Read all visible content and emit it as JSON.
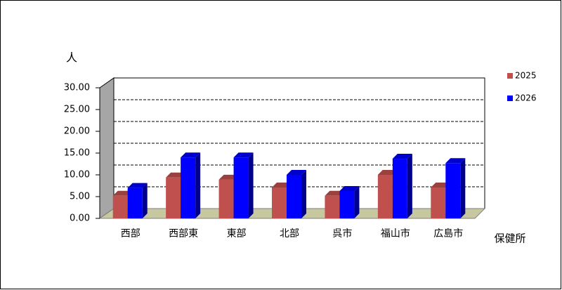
{
  "chart_data": {
    "type": "bar3d",
    "y_label": "人",
    "x_label": "保健所",
    "categories": [
      "西部",
      "西部東",
      "東部",
      "北部",
      "呉市",
      "福山市",
      "広島市"
    ],
    "series": [
      {
        "name": "2025",
        "color": "#c0504d",
        "values": [
          5.2,
          9.4,
          8.9,
          7.1,
          5.2,
          10.0,
          7.1
        ]
      },
      {
        "name": "2026",
        "color": "#0000ff",
        "values": [
          7.0,
          14.0,
          14.0,
          10.0,
          6.3,
          13.7,
          12.7
        ]
      }
    ],
    "ylim": [
      0,
      30
    ],
    "yticks": [
      {
        "value": 0,
        "label": "0.00"
      },
      {
        "value": 5,
        "label": "5.00"
      },
      {
        "value": 10,
        "label": "10.00"
      },
      {
        "value": 15,
        "label": "15.00"
      },
      {
        "value": 20,
        "label": "20.00"
      },
      {
        "value": 25,
        "label": "25.00"
      },
      {
        "value": 30,
        "label": "30.00"
      }
    ],
    "grid": true
  }
}
